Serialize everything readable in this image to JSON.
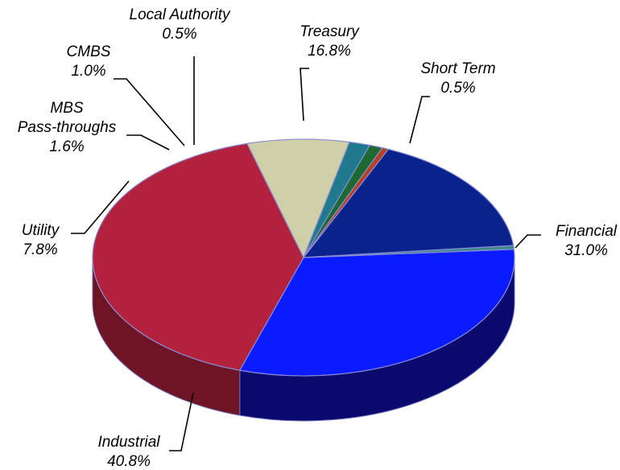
{
  "chart_data": {
    "type": "pie",
    "title": "",
    "slices": [
      {
        "label": "Financial",
        "pct_label": "31.0%",
        "value": 31.0,
        "color": "#0a1cff",
        "side_color": "#0a0a6e"
      },
      {
        "label": "Industrial",
        "pct_label": "40.8%",
        "value": 40.8,
        "color": "#b3223c",
        "side_color": "#6e1424"
      },
      {
        "label": "Utility",
        "pct_label": "7.8%",
        "value": 7.8,
        "color": "#cfcfa8",
        "side_color": "#8a8a68"
      },
      {
        "label": "MBS\nPass-throughs",
        "pct_label": "1.6%",
        "value": 1.6,
        "color": "#1e7a8c",
        "side_color": "#134d58"
      },
      {
        "label": "CMBS",
        "pct_label": "1.0%",
        "value": 1.0,
        "color": "#1c6a32",
        "side_color": "#10401e"
      },
      {
        "label": "Local Authority",
        "pct_label": "0.5%",
        "value": 0.5,
        "color": "#b8401e",
        "side_color": "#6e2612"
      },
      {
        "label": "Treasury",
        "pct_label": "16.8%",
        "value": 16.8,
        "color": "#0a238c",
        "side_color": "#06154f"
      },
      {
        "label": "Short Term",
        "pct_label": "0.5%",
        "value": 0.5,
        "color": "#3a8a8a",
        "side_color": "#235454"
      }
    ]
  }
}
